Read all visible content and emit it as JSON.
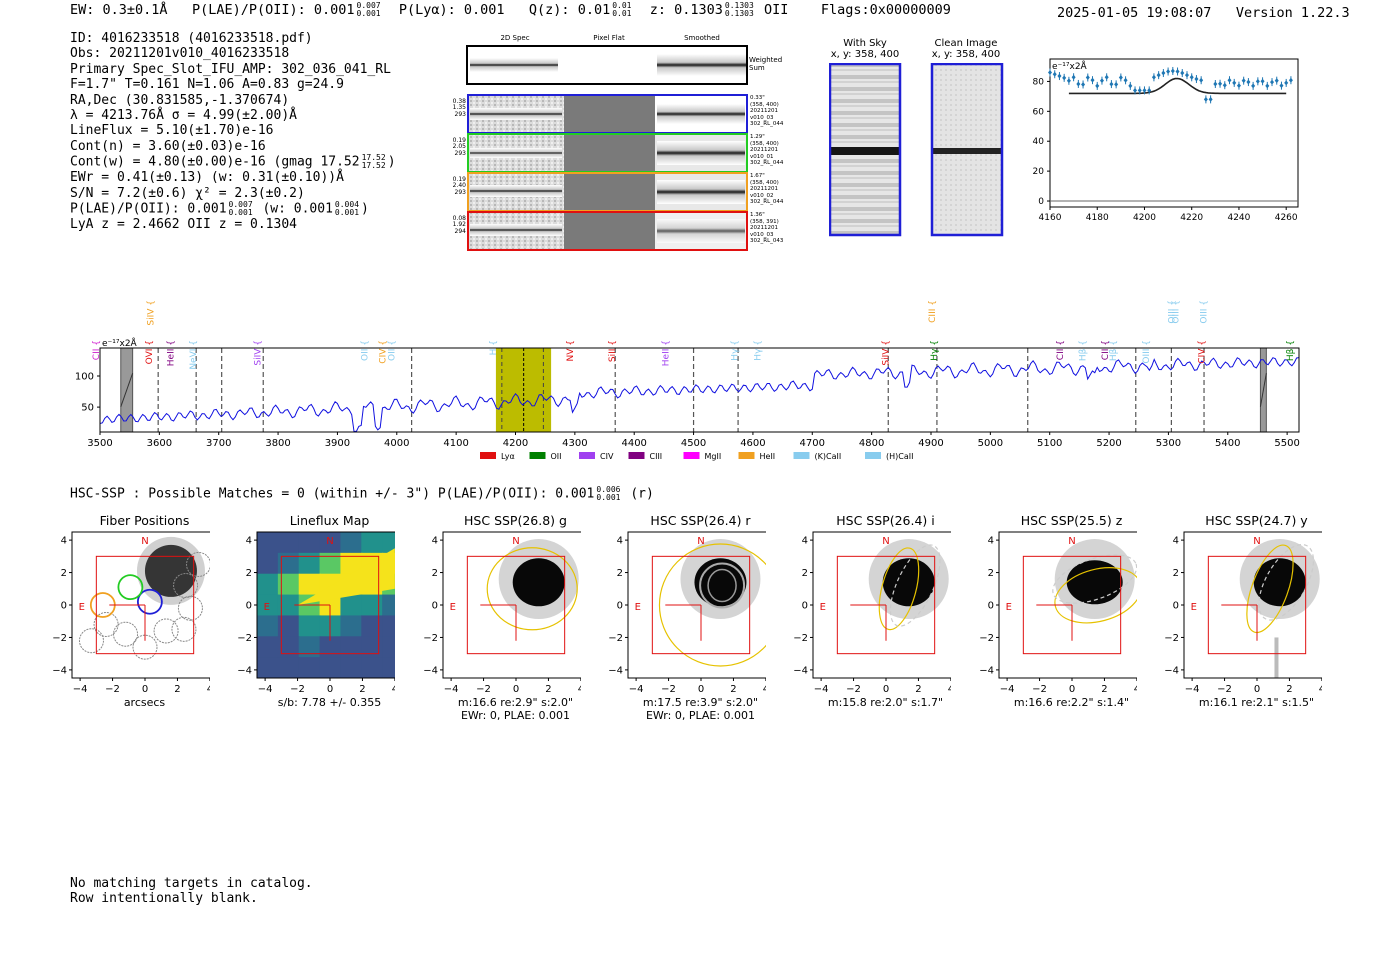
{
  "header": {
    "ew": "EW: 0.3±0.1Å",
    "plae_label": "P(LAE)/P(OII): 0.001",
    "plae_up": "0.007",
    "plae_lo": "0.001",
    "plya": "P(Lyα): 0.001",
    "qz_label": "Q(z): 0.01",
    "qz_up": "0.01",
    "qz_lo": "0.01",
    "z_label": "z: 0.1303",
    "z_up": "0.1303",
    "z_lo": "0.1303",
    "z_line": "OII",
    "flags": "Flags:0x00000009",
    "datetime": "2025-01-05 19:08:07",
    "version": "Version 1.22.3"
  },
  "info": {
    "id": "ID: 4016233518 (4016233518.pdf)",
    "obs": "Obs: 20211201v010_4016233518",
    "primary": "Primary Spec_Slot_IFU_AMP: 302_036_041_RL",
    "fiber": "F=1.7\"  T=0.161  N=1.06  A=0.83  g=24.9",
    "radec": "RA,Dec (30.831585,-1.370674)",
    "lambda": "λ = 4213.76Å  σ = 4.99(±2.00)Å",
    "lineflux": "LineFlux = 5.10(±1.70)e-16",
    "contn": "Cont(n) = 3.60(±0.03)e-16",
    "contw": "Cont(w) = 4.80(±0.00)e-16 (gmag 17.52",
    "contw_up": "17.52",
    "contw_lo": "17.52",
    "ewr": "EWr = 0.41(±0.13) (w: 0.31(±0.10))Å",
    "sn": "S/N = 7.2(±0.6)  χ² = 2.3(±0.2)",
    "plae": "P(LAE)/P(OII): 0.001",
    "plae_up": "0.007",
    "plae_lo": "0.001",
    "plae_w": "(w: 0.001",
    "plae_w_up": "0.004",
    "plae_w_lo": "0.001",
    "lyaz": "LyA z = 2.4662  OII z = 0.1304"
  },
  "cutouts": {
    "col_headers": [
      "2D Spec",
      "Pixel Flat",
      "Smoothed"
    ],
    "weighted": "Weighted Sum",
    "rows": [
      {
        "left": [
          "0.38",
          "1.35",
          "293"
        ],
        "right": [
          "0.33\"",
          "(358, 400)",
          "20211201",
          "v010_03",
          "302_RL_044"
        ],
        "color": "#1f1fd6"
      },
      {
        "left": [
          "0.19",
          "2.05",
          "293"
        ],
        "right": [
          "1.29\"",
          "(358, 400)",
          "20211201",
          "v010_01",
          "302_RL_044"
        ],
        "color": "#22cc22"
      },
      {
        "left": [
          "0.19",
          "2.40",
          "293"
        ],
        "right": [
          "1.67\"",
          "(358, 400)",
          "20211201",
          "v010_02",
          "302_RL_044"
        ],
        "color": "#f0a020"
      },
      {
        "left": [
          "0.08",
          "1.92",
          "294"
        ],
        "right": [
          "1.36\"",
          "(358, 391)",
          "20211201",
          "v010_03",
          "302_RL_043"
        ],
        "color": "#e01010"
      }
    ]
  },
  "sky": {
    "with_sky": "With Sky",
    "with_sky_xy": "x, y: 358, 400",
    "clean": "Clean Image",
    "clean_xy": "x, y: 358, 400"
  },
  "zoom_chart": {
    "unit": "e⁻¹⁷x2Å",
    "y_ticks": [
      "0",
      "20",
      "40",
      "60",
      "80"
    ],
    "x_ticks": [
      "4160",
      "4180",
      "4200",
      "4220",
      "4240",
      "4260"
    ]
  },
  "chart_data": {
    "type": "line",
    "title": "",
    "ylabel": "e⁻¹⁷x2Å",
    "xlim": [
      3500,
      5520
    ],
    "ylim": [
      10,
      145
    ],
    "x_ticks": [
      "3500",
      "3600",
      "3700",
      "3800",
      "3900",
      "4000",
      "4100",
      "4200",
      "4300",
      "4400",
      "4500",
      "4600",
      "4700",
      "4800",
      "4900",
      "5000",
      "5100",
      "5200",
      "5300",
      "5400",
      "5500"
    ],
    "y_ticks": [
      "50",
      "100"
    ],
    "emission_lines": [
      {
        "name": "CII",
        "color": "#d020d0",
        "x": 3498
      },
      {
        "name": "OVI",
        "color": "#e01010",
        "x": 3588
      },
      {
        "name": "SiIV",
        "color": "#f0a020",
        "x": 3590
      },
      {
        "name": "HeII",
        "color": "#800080",
        "x": 3624
      },
      {
        "name": "NeVI",
        "color": "#88ccee",
        "x": 3662
      },
      {
        "name": "SiIV",
        "color": "#a040f0",
        "x": 3770
      },
      {
        "name": "OII",
        "color": "#88ccee",
        "x": 3951
      },
      {
        "name": "CIV",
        "color": "#f0a020",
        "x": 3981
      },
      {
        "name": "OII",
        "color": "#88ccee",
        "x": 3996
      },
      {
        "name": "H",
        "color": "#88ccee",
        "x": 4167
      },
      {
        "name": "NV",
        "color": "#e01010",
        "x": 4297
      },
      {
        "name": "SiII",
        "color": "#e01010",
        "x": 4368
      },
      {
        "name": "HeII",
        "color": "#a040f0",
        "x": 4458
      },
      {
        "name": "Hγ",
        "color": "#88ccee",
        "x": 4574
      },
      {
        "name": "Hγ",
        "color": "#88ccee",
        "x": 4613
      },
      {
        "name": "SiIV",
        "color": "#e01010",
        "x": 4828
      },
      {
        "name": "CIII",
        "color": "#f0a020",
        "x": 4907
      },
      {
        "name": "Hγ",
        "color": "#008000",
        "x": 4910
      },
      {
        "name": "CII",
        "color": "#800080",
        "x": 5122
      },
      {
        "name": "Hβ",
        "color": "#88ccee",
        "x": 5160
      },
      {
        "name": "CII",
        "color": "#800080",
        "x": 5198
      },
      {
        "name": "Hβ",
        "color": "#88ccee",
        "x": 5212
      },
      {
        "name": "OIII",
        "color": "#88ccee",
        "x": 5267
      },
      {
        "name": "OIII",
        "color": "#88ccee",
        "x": 5310
      },
      {
        "name": "OIII",
        "color": "#88ccee",
        "x": 5317
      },
      {
        "name": "CIV",
        "color": "#e01010",
        "x": 5361
      },
      {
        "name": "OIII",
        "color": "#88ccee",
        "x": 5364
      },
      {
        "name": "Hβ",
        "color": "#008000",
        "x": 5510
      }
    ],
    "legend": [
      {
        "name": "Lyα",
        "color": "#e01010"
      },
      {
        "name": "OII",
        "color": "#008000"
      },
      {
        "name": "CIV",
        "color": "#a040f0"
      },
      {
        "name": "CIII",
        "color": "#800080"
      },
      {
        "name": "MgII",
        "color": "#ff00ff"
      },
      {
        "name": "HeII",
        "color": "#f0a020"
      },
      {
        "name": "(K)CaII",
        "color": "#88ccee"
      },
      {
        "name": "(H)CaII",
        "color": "#88ccee"
      }
    ]
  },
  "hsc": {
    "title": "HSC-SSP : Possible Matches = 0 (within +/- 3\")  P(LAE)/P(OII): 0.001",
    "title_up": "0.006",
    "title_lo": "0.001",
    "title_band": "(r)",
    "axis_ticks": [
      "−4",
      "−2",
      "0",
      "2",
      "4"
    ],
    "panels": [
      {
        "title": "Fiber Positions",
        "caption": "arcsecs",
        "caption2": ""
      },
      {
        "title": "Lineflux Map",
        "caption": "s/b: 7.78 +/- 0.355",
        "caption2": ""
      },
      {
        "title": "HSC SSP(26.8) g",
        "caption": "m:16.6  re:2.9\"  s:2.0\"",
        "caption2": "EWr: 0, PLAE: 0.001"
      },
      {
        "title": "HSC SSP(26.4) r",
        "caption": "m:17.5  re:3.9\"  s:2.0\"",
        "caption2": "EWr: 0, PLAE: 0.001"
      },
      {
        "title": "HSC SSP(26.4) i",
        "caption": "m:15.8  re:2.0\"  s:1.7\"",
        "caption2": ""
      },
      {
        "title": "HSC SSP(25.5) z",
        "caption": "m:16.6  re:2.2\"  s:1.4\"",
        "caption2": ""
      },
      {
        "title": "HSC SSP(24.7) y",
        "caption": "m:16.1  re:2.1\"  s:1.5\"",
        "caption2": ""
      }
    ],
    "north": "N",
    "east": "E"
  },
  "footer": {
    "line1": "No matching targets in catalog.",
    "line2": "Row intentionally blank."
  }
}
